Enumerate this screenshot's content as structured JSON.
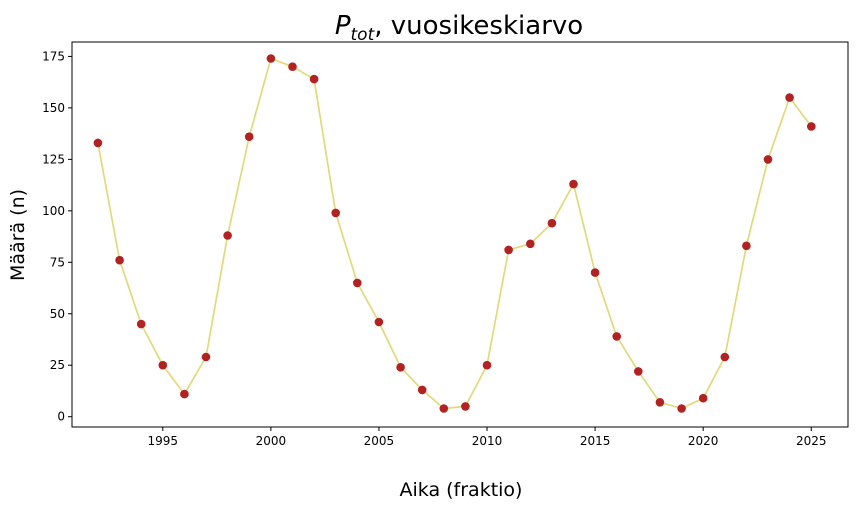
{
  "chart_data": {
    "type": "line",
    "title_main": "P",
    "title_sub": "tot",
    "title_rest": ", vuosikeskiarvo",
    "xlabel": "Aika (fraktio)",
    "ylabel": "Määrä (n)",
    "xlim": [
      1990.8,
      2026.7
    ],
    "ylim": [
      -5,
      182
    ],
    "xticks": [
      1995,
      2000,
      2005,
      2010,
      2015,
      2020,
      2025
    ],
    "yticks": [
      0,
      25,
      50,
      75,
      100,
      125,
      150,
      175
    ],
    "grid": false,
    "line_color": "#e2d97a",
    "marker_color": "#b22222",
    "x": [
      1992,
      1993,
      1994,
      1995,
      1996,
      1997,
      1998,
      1999,
      2000,
      2001,
      2002,
      2003,
      2004,
      2005,
      2006,
      2007,
      2008,
      2009,
      2010,
      2011,
      2012,
      2013,
      2014,
      2015,
      2016,
      2017,
      2018,
      2019,
      2020,
      2021,
      2022,
      2023,
      2024,
      2025
    ],
    "y": [
      133,
      76,
      45,
      25,
      11,
      29,
      88,
      136,
      174,
      170,
      164,
      99,
      65,
      46,
      24,
      13,
      4,
      5,
      25,
      81,
      84,
      94,
      113,
      70,
      39,
      22,
      7,
      4,
      9,
      29,
      83,
      125,
      155,
      141
    ]
  }
}
